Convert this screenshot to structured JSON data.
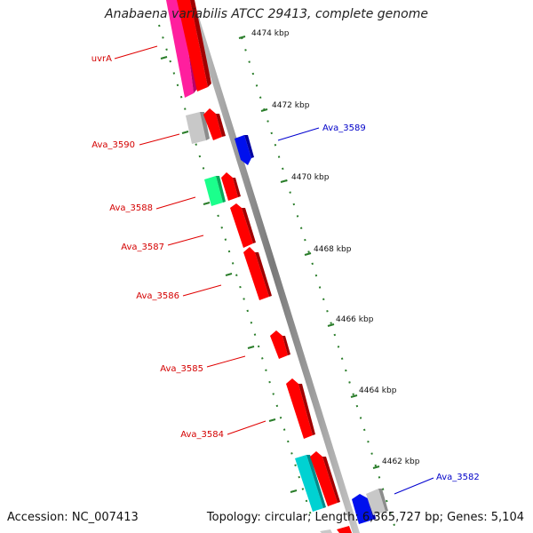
{
  "title": "Anabaena variabilis ATCC 29413, complete genome",
  "footer": {
    "accession": "Accession: NC_007413",
    "stats": "Topology: circular; Length: 6,365,727 bp; Genes: 5,104"
  },
  "colors": {
    "forward_label": "#d40000",
    "reverse_label": "#0000c8",
    "backbone": "#8a8a8a",
    "tick": "#2a7d2a"
  },
  "kbp_ticks": [
    "4474 kbp",
    "4472 kbp",
    "4470 kbp",
    "4468 kbp",
    "4466 kbp",
    "4464 kbp",
    "4462 kbp"
  ],
  "gene_labels": {
    "left": [
      "uvrA",
      "Ava_3590",
      "Ava_3588",
      "Ava_3587",
      "Ava_3586",
      "Ava_3585",
      "Ava_3584"
    ],
    "right": [
      "Ava_3589",
      "Ava_3582"
    ]
  }
}
